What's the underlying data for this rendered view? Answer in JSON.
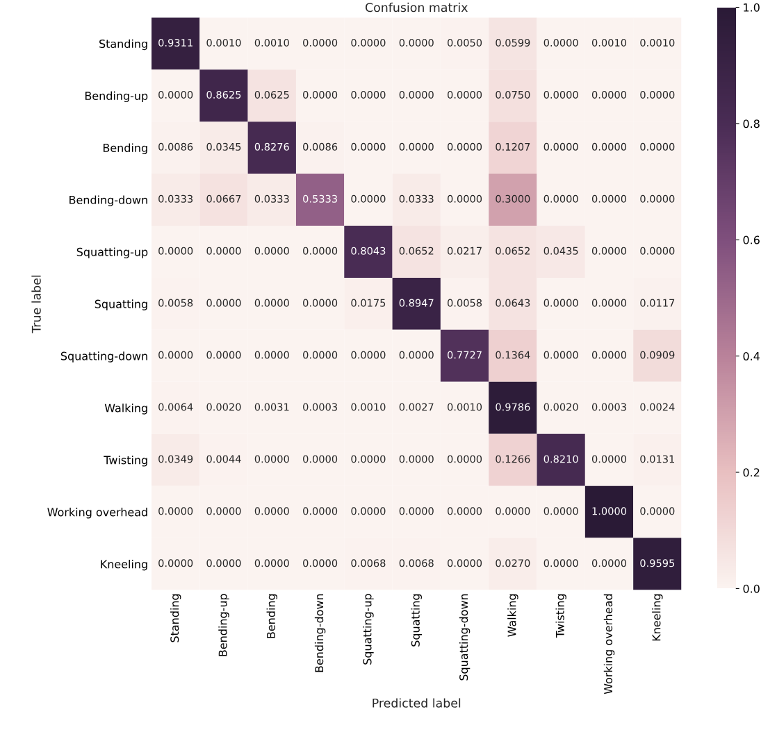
{
  "chart_data": {
    "type": "heatmap",
    "title": "Confusion matrix",
    "xlabel": "Predicted label",
    "ylabel": "True label",
    "categories": [
      "Standing",
      "Bending-up",
      "Bending",
      "Bending-down",
      "Squatting-up",
      "Squatting",
      "Squatting-down",
      "Walking",
      "Twisting",
      "Working overhead",
      "Kneeling"
    ],
    "y_categories": [
      "Standing",
      "Bending-up",
      "Bending",
      "Bending-down",
      "Squatting-up",
      "Squatting",
      "Squatting-down",
      "Walking",
      "Twisting",
      "Working overhead",
      "Kneeling"
    ],
    "cells": [
      [
        0.9311,
        0.001,
        0.001,
        0.0,
        0.0,
        0.0,
        0.005,
        0.0599,
        0.0,
        0.001,
        0.001
      ],
      [
        0.0,
        0.8625,
        0.0625,
        0.0,
        0.0,
        0.0,
        0.0,
        0.075,
        0.0,
        0.0,
        0.0
      ],
      [
        0.0086,
        0.0345,
        0.8276,
        0.0086,
        0.0,
        0.0,
        0.0,
        0.1207,
        0.0,
        0.0,
        0.0
      ],
      [
        0.0333,
        0.0667,
        0.0333,
        0.5333,
        0.0,
        0.0333,
        0.0,
        0.3,
        0.0,
        0.0,
        0.0
      ],
      [
        0.0,
        0.0,
        0.0,
        0.0,
        0.8043,
        0.0652,
        0.0217,
        0.0652,
        0.0435,
        0.0,
        0.0
      ],
      [
        0.0058,
        0.0,
        0.0,
        0.0,
        0.0175,
        0.8947,
        0.0058,
        0.0643,
        0.0,
        0.0,
        0.0117
      ],
      [
        0.0,
        0.0,
        0.0,
        0.0,
        0.0,
        0.0,
        0.7727,
        0.1364,
        0.0,
        0.0,
        0.0909
      ],
      [
        0.0064,
        0.002,
        0.0031,
        0.0003,
        0.001,
        0.0027,
        0.001,
        0.9786,
        0.002,
        0.0003,
        0.0024
      ],
      [
        0.0349,
        0.0044,
        0.0,
        0.0,
        0.0,
        0.0,
        0.0,
        0.1266,
        0.821,
        0.0,
        0.0131
      ],
      [
        0.0,
        0.0,
        0.0,
        0.0,
        0.0,
        0.0,
        0.0,
        0.0,
        0.0,
        1.0,
        0.0
      ],
      [
        0.0,
        0.0,
        0.0,
        0.0,
        0.0068,
        0.0068,
        0.0,
        0.027,
        0.0,
        0.0,
        0.9595
      ]
    ],
    "cell_labels": [
      [
        "0.9311",
        "0.0010",
        "0.0010",
        "0.0000",
        "0.0000",
        "0.0000",
        "0.0050",
        "0.0599",
        "0.0000",
        "0.0010",
        "0.0010"
      ],
      [
        "0.0000",
        "0.8625",
        "0.0625",
        "0.0000",
        "0.0000",
        "0.0000",
        "0.0000",
        "0.0750",
        "0.0000",
        "0.0000",
        "0.0000"
      ],
      [
        "0.0086",
        "0.0345",
        "0.8276",
        "0.0086",
        "0.0000",
        "0.0000",
        "0.0000",
        "0.1207",
        "0.0000",
        "0.0000",
        "0.0000"
      ],
      [
        "0.0333",
        "0.0667",
        "0.0333",
        "0.5333",
        "0.0000",
        "0.0333",
        "0.0000",
        "0.3000",
        "0.0000",
        "0.0000",
        "0.0000"
      ],
      [
        "0.0000",
        "0.0000",
        "0.0000",
        "0.0000",
        "0.8043",
        "0.0652",
        "0.0217",
        "0.0652",
        "0.0435",
        "0.0000",
        "0.0000"
      ],
      [
        "0.0058",
        "0.0000",
        "0.0000",
        "0.0000",
        "0.0175",
        "0.8947",
        "0.0058",
        "0.0643",
        "0.0000",
        "0.0000",
        "0.0117"
      ],
      [
        "0.0000",
        "0.0000",
        "0.0000",
        "0.0000",
        "0.0000",
        "0.0000",
        "0.7727",
        "0.1364",
        "0.0000",
        "0.0000",
        "0.0909"
      ],
      [
        "0.0064",
        "0.0020",
        "0.0031",
        "0.0003",
        "0.0010",
        "0.0027",
        "0.0010",
        "0.9786",
        "0.0020",
        "0.0003",
        "0.0024"
      ],
      [
        "0.0349",
        "0.0044",
        "0.0000",
        "0.0000",
        "0.0000",
        "0.0000",
        "0.0000",
        "0.1266",
        "0.8210",
        "0.0000",
        "0.0131"
      ],
      [
        "0.0000",
        "0.0000",
        "0.0000",
        "0.0000",
        "0.0000",
        "0.0000",
        "0.0000",
        "0.0000",
        "0.0000",
        "1.0000",
        "0.0000"
      ],
      [
        "0.0000",
        "0.0000",
        "0.0000",
        "0.0000",
        "0.0068",
        "0.0068",
        "0.0000",
        "0.0270",
        "0.0000",
        "0.0000",
        "0.9595"
      ]
    ],
    "clim": [
      0,
      1
    ],
    "cticks": [
      {
        "value": 0,
        "label": "0.0"
      },
      {
        "value": 0.2,
        "label": "0.2"
      },
      {
        "value": 0.4,
        "label": "0.4"
      },
      {
        "value": 0.6,
        "label": "0.6"
      },
      {
        "value": 0.8,
        "label": "0.8"
      },
      {
        "value": 1,
        "label": "1.0"
      }
    ]
  }
}
